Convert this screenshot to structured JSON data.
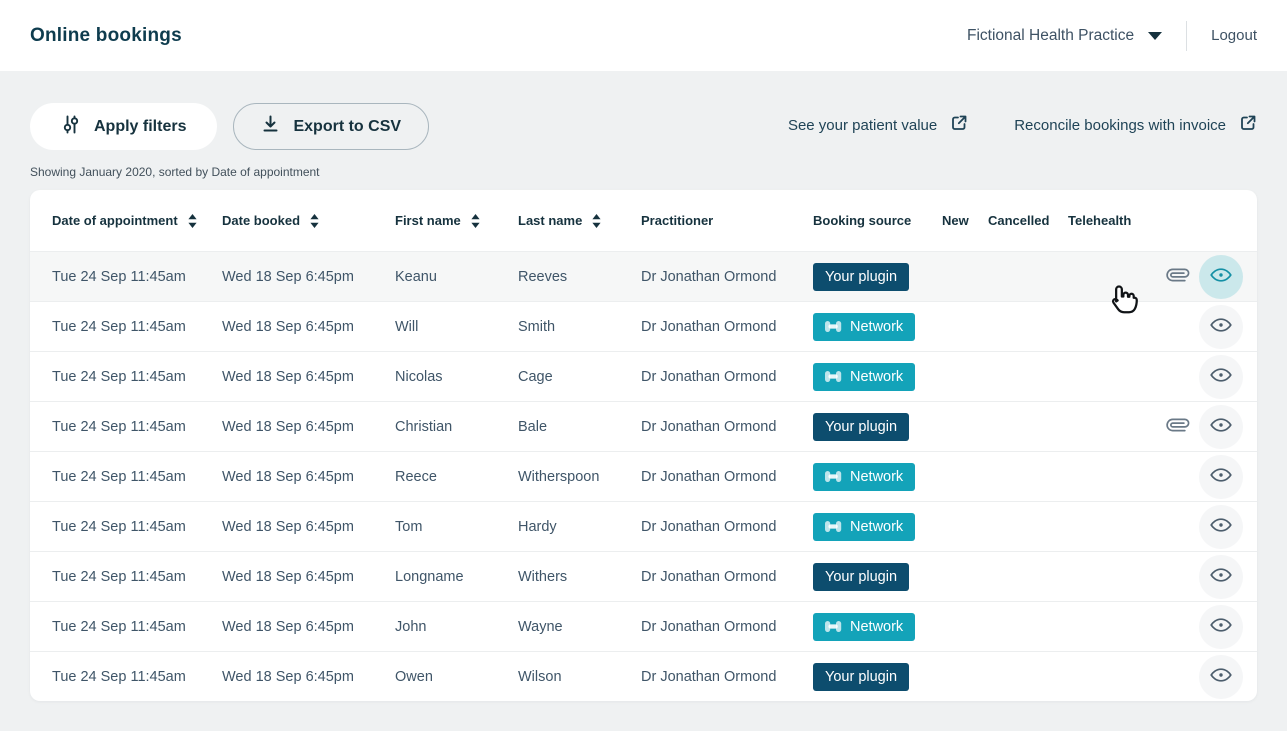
{
  "header": {
    "title": "Online bookings",
    "practice_name": "Fictional Health Practice",
    "logout": "Logout"
  },
  "toolbar": {
    "apply_filters": "Apply filters",
    "export_csv": "Export to CSV",
    "see_patient_value": "See your patient value",
    "reconcile_bookings": "Reconcile bookings with invoice",
    "showing": "Showing January 2020, sorted by Date of appointment"
  },
  "table": {
    "columns": [
      {
        "label": "Date of appointment",
        "sortable": true
      },
      {
        "label": "Date booked",
        "sortable": true
      },
      {
        "label": "First name",
        "sortable": true
      },
      {
        "label": "Last name",
        "sortable": true
      },
      {
        "label": "Practitioner",
        "sortable": false
      },
      {
        "label": "Booking source",
        "sortable": false
      },
      {
        "label": "New",
        "sortable": false
      },
      {
        "label": "Cancelled",
        "sortable": false
      },
      {
        "label": "Telehealth",
        "sortable": false
      }
    ],
    "badge_labels": {
      "plugin": "Your plugin",
      "network": "Network"
    },
    "badge_colors": {
      "plugin": "#0d4d6e",
      "network": "#13a3b9"
    },
    "status_colors": {
      "new": "#7cc840",
      "cancelled": "#e61a50",
      "telehealth": "#1494cb"
    },
    "rows": [
      {
        "date_of_appointment": "Tue 24 Sep 11:45am",
        "date_booked": "Wed 18 Sep 6:45pm",
        "first_name": "Keanu",
        "last_name": "Reeves",
        "practitioner": "Dr Jonathan Ormond",
        "booking_source": "plugin",
        "new": true,
        "cancelled": true,
        "telehealth": true,
        "attachment": true,
        "highlighted": true
      },
      {
        "date_of_appointment": "Tue 24 Sep 11:45am",
        "date_booked": "Wed 18 Sep 6:45pm",
        "first_name": "Will",
        "last_name": "Smith",
        "practitioner": "Dr Jonathan Ormond",
        "booking_source": "network",
        "new": true,
        "cancelled": false,
        "telehealth": false,
        "attachment": false,
        "highlighted": false
      },
      {
        "date_of_appointment": "Tue 24 Sep 11:45am",
        "date_booked": "Wed 18 Sep 6:45pm",
        "first_name": "Nicolas",
        "last_name": "Cage",
        "practitioner": "Dr Jonathan Ormond",
        "booking_source": "network",
        "new": true,
        "cancelled": false,
        "telehealth": false,
        "attachment": false,
        "highlighted": false
      },
      {
        "date_of_appointment": "Tue 24 Sep 11:45am",
        "date_booked": "Wed 18 Sep 6:45pm",
        "first_name": "Christian",
        "last_name": "Bale",
        "practitioner": "Dr Jonathan Ormond",
        "booking_source": "plugin",
        "new": true,
        "cancelled": false,
        "telehealth": false,
        "attachment": true,
        "highlighted": false
      },
      {
        "date_of_appointment": "Tue 24 Sep 11:45am",
        "date_booked": "Wed 18 Sep 6:45pm",
        "first_name": "Reece",
        "last_name": "Witherspoon",
        "practitioner": "Dr Jonathan Ormond",
        "booking_source": "network",
        "new": true,
        "cancelled": false,
        "telehealth": false,
        "attachment": false,
        "highlighted": false
      },
      {
        "date_of_appointment": "Tue 24 Sep 11:45am",
        "date_booked": "Wed 18 Sep 6:45pm",
        "first_name": "Tom",
        "last_name": "Hardy",
        "practitioner": "Dr Jonathan Ormond",
        "booking_source": "network",
        "new": true,
        "cancelled": false,
        "telehealth": false,
        "attachment": false,
        "highlighted": false
      },
      {
        "date_of_appointment": "Tue 24 Sep 11:45am",
        "date_booked": "Wed 18 Sep 6:45pm",
        "first_name": "Longname",
        "last_name": "Withers",
        "practitioner": "Dr Jonathan Ormond",
        "booking_source": "plugin",
        "new": false,
        "cancelled": false,
        "telehealth": false,
        "attachment": false,
        "highlighted": false
      },
      {
        "date_of_appointment": "Tue 24 Sep 11:45am",
        "date_booked": "Wed 18 Sep 6:45pm",
        "first_name": "John",
        "last_name": "Wayne",
        "practitioner": "Dr Jonathan Ormond",
        "booking_source": "network",
        "new": false,
        "cancelled": true,
        "telehealth": false,
        "attachment": false,
        "highlighted": false
      },
      {
        "date_of_appointment": "Tue 24 Sep 11:45am",
        "date_booked": "Wed 18 Sep 6:45pm",
        "first_name": "Owen",
        "last_name": "Wilson",
        "practitioner": "Dr Jonathan Ormond",
        "booking_source": "plugin",
        "new": true,
        "cancelled": false,
        "telehealth": false,
        "attachment": false,
        "highlighted": false
      }
    ]
  }
}
